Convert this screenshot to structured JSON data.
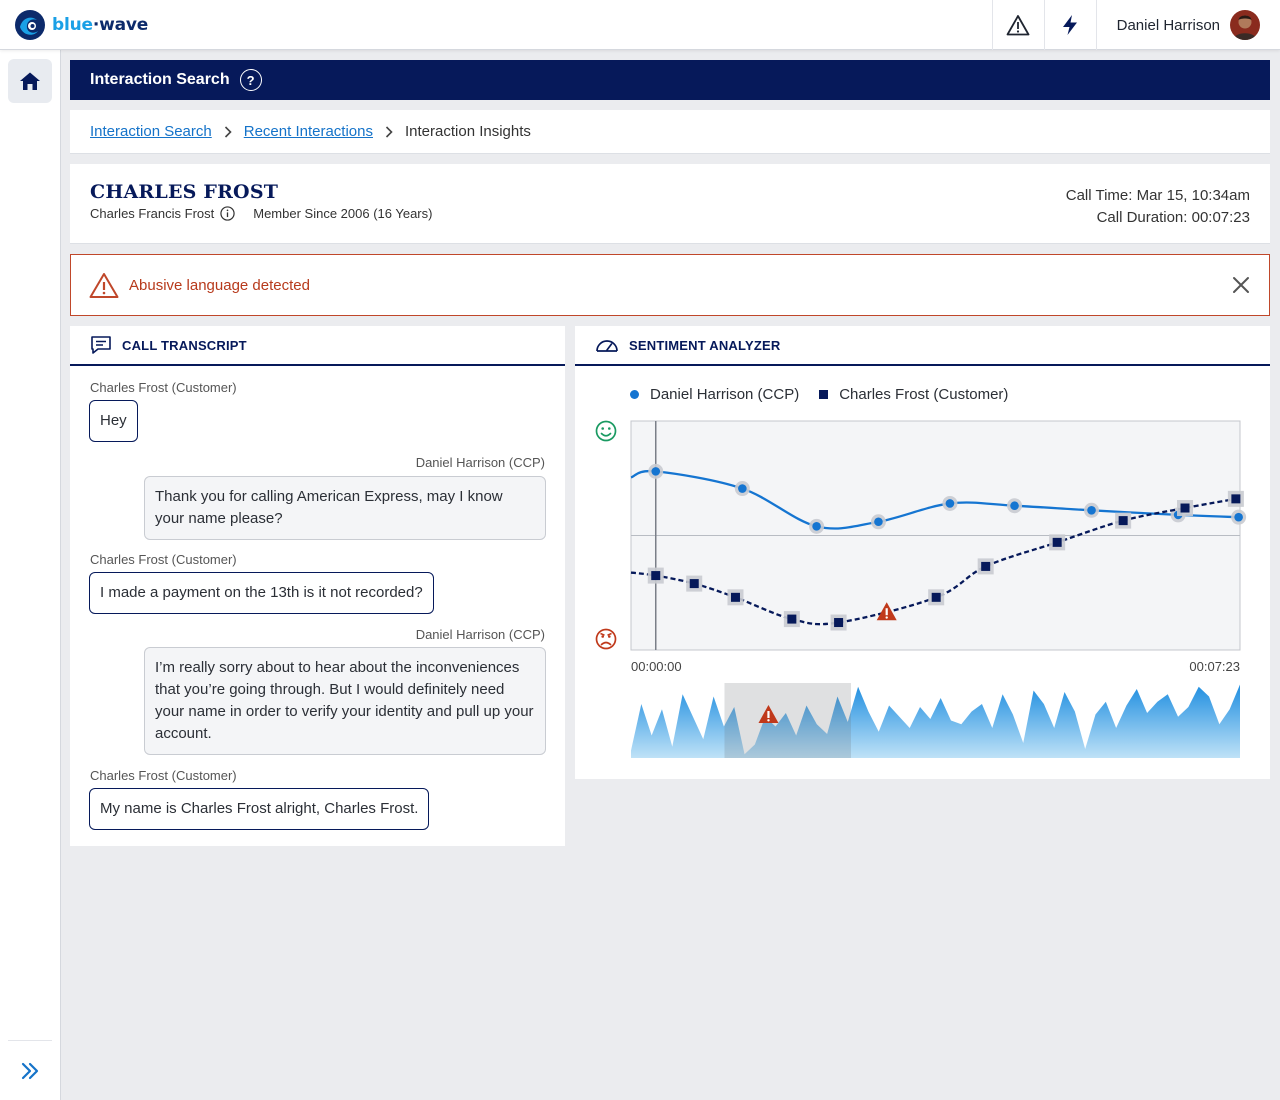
{
  "app": {
    "brand_part1": "blue",
    "brand_part2": "wave"
  },
  "topbar": {
    "alerts_icon": "warning-icon",
    "quick_icon": "lightning-icon",
    "user_name": "Daniel Harrison"
  },
  "sidebar": {
    "home_icon": "home-icon",
    "expand_icon": "double-chevron-right-icon"
  },
  "page": {
    "title": "Interaction Search",
    "help_symbol": "?"
  },
  "breadcrumb": {
    "items": [
      {
        "label": "Interaction Search",
        "link": true
      },
      {
        "label": "Recent Interactions",
        "link": true
      },
      {
        "label": "Interaction Insights",
        "link": false
      }
    ]
  },
  "customer": {
    "name": "CHARLES FROST",
    "full_name": "Charles Francis Frost",
    "member_since": "Member Since 2006 (16 Years)",
    "call_time": "Call Time: Mar 15, 10:34am",
    "call_duration": "Call Duration: 00:07:23"
  },
  "alert": {
    "text": "Abusive language detected",
    "color": "#b73a1c"
  },
  "transcript": {
    "title": "CALL TRANSCRIPT",
    "messages": [
      {
        "speaker": "Charles Frost (Customer)",
        "role": "customer",
        "text": "Hey"
      },
      {
        "speaker": "Daniel Harrison (CCP)",
        "role": "agent",
        "text": "Thank you for calling American Express, may I know your name please?"
      },
      {
        "speaker": "Charles Frost (Customer)",
        "role": "customer",
        "text": "I made a payment on the 13th is it not recorded?"
      },
      {
        "speaker": "Daniel Harrison (CCP)",
        "role": "agent",
        "text": "I’m really sorry about to hear about the inconveniences that you’re going through. But I would definitely need your name in order to verify your identity and pull up your account."
      },
      {
        "speaker": "Charles Frost (Customer)",
        "role": "customer",
        "text": "My name is Charles Frost alright, Charles Frost."
      }
    ]
  },
  "sentiment": {
    "title": "SENTIMENT ANALYZER",
    "colors": {
      "agent": "#1575d1",
      "customer": "#06195a",
      "alert": "#c0391b",
      "positive": "#1a9a62"
    }
  },
  "chart_data": {
    "type": "line",
    "x_start_label": "00:00:00",
    "x_end_label": "00:07:23",
    "x_range_seconds": [
      0,
      443
    ],
    "y_range": [
      -1,
      1
    ],
    "y_top_icon": "happy-face-icon",
    "y_bottom_icon": "angry-face-icon",
    "grid": "midline",
    "legend_position": "top-left",
    "cursor_x": 18,
    "series": [
      {
        "name": "Daniel Harrison (CCP)",
        "marker": "circle",
        "style": "solid",
        "x": [
          18,
          81,
          135,
          180,
          232,
          279,
          335,
          398,
          442
        ],
        "y": [
          0.56,
          0.41,
          0.08,
          0.12,
          0.28,
          0.26,
          0.22,
          0.18,
          0.16
        ]
      },
      {
        "name": "Charles Frost (Customer)",
        "marker": "square",
        "style": "dashed",
        "x": [
          18,
          46,
          76,
          117,
          151,
          222,
          258,
          310,
          358,
          403,
          440
        ],
        "y": [
          -0.35,
          -0.42,
          -0.54,
          -0.73,
          -0.76,
          -0.54,
          -0.27,
          -0.06,
          0.13,
          0.24,
          0.32
        ]
      }
    ],
    "alert_markers": [
      {
        "x": 186,
        "series": "Charles Frost (Customer)",
        "y": -0.67
      }
    ],
    "overview": {
      "selection_range_seconds": [
        68,
        160
      ],
      "alert_x": 100,
      "profile": [
        0.1,
        0.72,
        0.3,
        0.65,
        0.15,
        0.85,
        0.55,
        0.25,
        0.82,
        0.42,
        0.68,
        0.05,
        0.18,
        0.55,
        0.42,
        0.6,
        0.3,
        0.7,
        0.45,
        0.32,
        0.82,
        0.48,
        0.95,
        0.62,
        0.35,
        0.7,
        0.55,
        0.4,
        0.68,
        0.52,
        0.8,
        0.5,
        0.45,
        0.62,
        0.72,
        0.4,
        0.85,
        0.58,
        0.2,
        0.9,
        0.72,
        0.4,
        0.88,
        0.62,
        0.12,
        0.58,
        0.75,
        0.4,
        0.7,
        0.92,
        0.6,
        0.75,
        0.85,
        0.55,
        0.68,
        0.95,
        0.82,
        0.45,
        0.65,
        0.98
      ]
    }
  }
}
